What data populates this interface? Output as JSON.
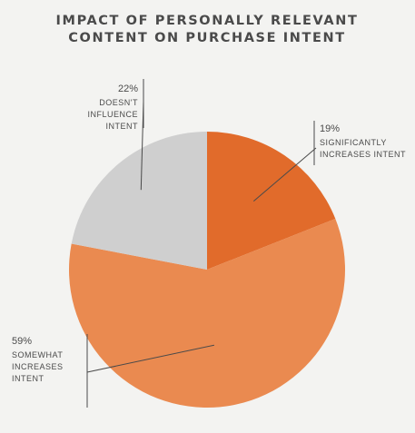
{
  "chart_data": {
    "type": "pie",
    "title_lines": [
      "IMPACT OF PERSONALLY RELEVANT",
      "CONTENT ON PURCHASE INTENT"
    ],
    "slices": [
      {
        "key": "significantly",
        "value": 19,
        "value_label": "19%",
        "label_lines": [
          "SIGNIFICANTLY",
          "INCREASES INTENT"
        ],
        "color": "#e16b2b"
      },
      {
        "key": "somewhat",
        "value": 59,
        "value_label": "59%",
        "label_lines": [
          "SOMEWHAT",
          "INCREASES",
          "INTENT"
        ],
        "color": "#ea8a50"
      },
      {
        "key": "doesnt",
        "value": 22,
        "value_label": "22%",
        "label_lines": [
          "DOESN'T",
          "INFLUENCE",
          "INTENT"
        ],
        "color": "#cfcfcf"
      }
    ],
    "start_angle": "12 o'clock",
    "direction": "clockwise",
    "legend": "none"
  }
}
